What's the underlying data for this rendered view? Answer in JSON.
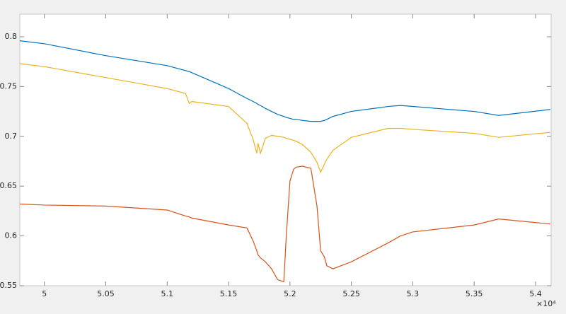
{
  "chart_data": {
    "type": "line",
    "x": [
      49800,
      50000,
      50500,
      51000,
      51150,
      51180,
      51200,
      51500,
      51650,
      51700,
      51730,
      51740,
      51760,
      51800,
      51850,
      51900,
      51950,
      51970,
      52000,
      52030,
      52050,
      52100,
      52170,
      52220,
      52250,
      52280,
      52300,
      52350,
      52500,
      52800,
      52900,
      53000,
      53500,
      53700,
      54120
    ],
    "series": [
      {
        "color": "#0072bd",
        "values": [
          0.796,
          0.793,
          0.781,
          0.771,
          0.766,
          0.765,
          0.764,
          0.748,
          0.738,
          0.735,
          0.733,
          0.732,
          0.731,
          0.728,
          0.725,
          0.722,
          0.72,
          0.719,
          0.718,
          0.717,
          0.717,
          0.716,
          0.715,
          0.715,
          0.715,
          0.716,
          0.717,
          0.72,
          0.725,
          0.73,
          0.731,
          0.73,
          0.725,
          0.721,
          0.727
        ]
      },
      {
        "color": "#d95319",
        "values": [
          0.632,
          0.631,
          0.63,
          0.626,
          0.62,
          0.619,
          0.618,
          0.611,
          0.608,
          0.595,
          0.585,
          0.581,
          0.578,
          0.574,
          0.567,
          0.556,
          0.554,
          0.6,
          0.655,
          0.667,
          0.669,
          0.67,
          0.668,
          0.63,
          0.585,
          0.579,
          0.57,
          0.567,
          0.574,
          0.593,
          0.6,
          0.604,
          0.611,
          0.617,
          0.612
        ]
      },
      {
        "color": "#edb120",
        "values": [
          0.773,
          0.77,
          0.759,
          0.748,
          0.743,
          0.733,
          0.735,
          0.73,
          0.713,
          0.697,
          0.683,
          0.693,
          0.683,
          0.698,
          0.701,
          0.7,
          0.699,
          0.698,
          0.697,
          0.696,
          0.695,
          0.692,
          0.684,
          0.674,
          0.664,
          0.672,
          0.677,
          0.686,
          0.699,
          0.708,
          0.708,
          0.707,
          0.703,
          0.699,
          0.704
        ]
      }
    ],
    "xlim": [
      49800,
      54127
    ],
    "ylim": [
      0.55,
      0.8227
    ],
    "xticks": [
      {
        "value": 50000,
        "label": "5"
      },
      {
        "value": 50500,
        "label": "5.05"
      },
      {
        "value": 51000,
        "label": "5.1"
      },
      {
        "value": 51500,
        "label": "5.15"
      },
      {
        "value": 52000,
        "label": "5.2"
      },
      {
        "value": 52500,
        "label": "5.25"
      },
      {
        "value": 53000,
        "label": "5.3"
      },
      {
        "value": 53500,
        "label": "5.35"
      },
      {
        "value": 54000,
        "label": "5.4"
      }
    ],
    "yticks": [
      0.55,
      0.6,
      0.65,
      0.7,
      0.75,
      0.8
    ],
    "x_exponent": "×10⁴"
  }
}
